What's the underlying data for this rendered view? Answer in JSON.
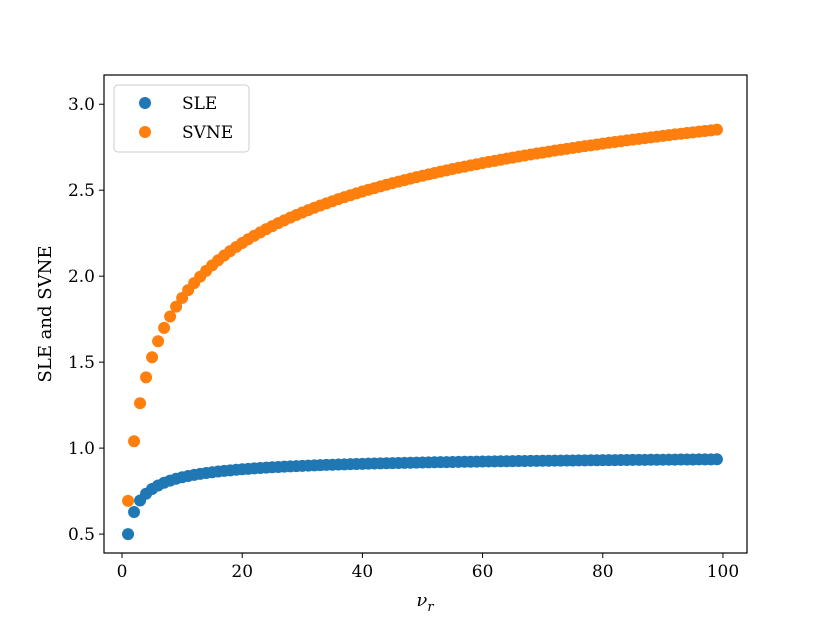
{
  "chart_data": {
    "type": "scatter",
    "title": "",
    "xlabel": "ν_r",
    "xlabel_main": "ν",
    "xlabel_sub": "r",
    "ylabel": "SLE and SVNE",
    "xlim": [
      -3,
      104
    ],
    "ylim": [
      0.39,
      3.17
    ],
    "xticks": [
      0,
      20,
      40,
      60,
      80,
      100
    ],
    "xtick_labels": [
      "0",
      "20",
      "40",
      "60",
      "80",
      "100"
    ],
    "yticks": [
      0.5,
      1.0,
      1.5,
      2.0,
      2.5,
      3.0
    ],
    "ytick_labels": [
      "0.5",
      "1.0",
      "1.5",
      "2.0",
      "2.5",
      "3.0"
    ],
    "grid": false,
    "legend_position": "top-left",
    "x": [
      1,
      2,
      3,
      4,
      5,
      6,
      7,
      8,
      9,
      10,
      11,
      12,
      13,
      14,
      15,
      16,
      17,
      18,
      19,
      20,
      21,
      22,
      23,
      24,
      25,
      26,
      27,
      28,
      29,
      30,
      31,
      32,
      33,
      34,
      35,
      36,
      37,
      38,
      39,
      40,
      41,
      42,
      43,
      44,
      45,
      46,
      47,
      48,
      49,
      50,
      51,
      52,
      53,
      54,
      55,
      56,
      57,
      58,
      59,
      60,
      61,
      62,
      63,
      64,
      65,
      66,
      67,
      68,
      69,
      70,
      71,
      72,
      73,
      74,
      75,
      76,
      77,
      78,
      79,
      80,
      81,
      82,
      83,
      84,
      85,
      86,
      87,
      88,
      89,
      90,
      91,
      92,
      93,
      94,
      95,
      96,
      97,
      98,
      99
    ],
    "series": [
      {
        "name": "SLE",
        "color": "#1f77b4",
        "values": [
          0.5,
          0.6285,
          0.6951,
          0.7344,
          0.7624,
          0.7827,
          0.7985,
          0.8111,
          0.8215,
          0.8303,
          0.8378,
          0.8442,
          0.8499,
          0.855,
          0.8596,
          0.8637,
          0.8674,
          0.8708,
          0.8739,
          0.8768,
          0.8795,
          0.882,
          0.8843,
          0.8864,
          0.8884,
          0.8903,
          0.8921,
          0.8938,
          0.8954,
          0.8969,
          0.8983,
          0.8997,
          0.901,
          0.9022,
          0.9034,
          0.9045,
          0.9056,
          0.9066,
          0.9076,
          0.9086,
          0.9095,
          0.9104,
          0.9112,
          0.912,
          0.9128,
          0.9136,
          0.9143,
          0.915,
          0.9157,
          0.9164,
          0.917,
          0.9176,
          0.9182,
          0.9188,
          0.9194,
          0.9199,
          0.9205,
          0.921,
          0.9215,
          0.922,
          0.9225,
          0.923,
          0.9234,
          0.9239,
          0.9243,
          0.9248,
          0.9252,
          0.9256,
          0.926,
          0.9264,
          0.9268,
          0.9271,
          0.9275,
          0.9279,
          0.9282,
          0.9285,
          0.9289,
          0.9292,
          0.9295,
          0.9299,
          0.9302,
          0.9305,
          0.9308,
          0.9311,
          0.9313,
          0.9316,
          0.9319,
          0.9322,
          0.9324,
          0.9327,
          0.933,
          0.9332,
          0.9335,
          0.9337,
          0.9339,
          0.9342,
          0.9344,
          0.9346,
          0.9349
        ]
      },
      {
        "name": "SVNE",
        "color": "#ff7f0e",
        "values": [
          0.6931,
          1.0397,
          1.2613,
          1.4111,
          1.5284,
          1.6217,
          1.6992,
          1.7652,
          1.8227,
          1.8734,
          1.9187,
          1.9597,
          1.997,
          2.0313,
          2.063,
          2.0925,
          2.12,
          2.1458,
          2.17,
          2.1929,
          2.2146,
          2.2352,
          2.2548,
          2.2735,
          2.2913,
          2.3084,
          2.3248,
          2.3405,
          2.3556,
          2.3702,
          2.3842,
          2.3978,
          2.4109,
          2.4236,
          2.4359,
          2.4478,
          2.4594,
          2.4706,
          2.4815,
          2.4921,
          2.5024,
          2.5124,
          2.5222,
          2.5317,
          2.541,
          2.5501,
          2.5589,
          2.5676,
          2.576,
          2.5843,
          2.5923,
          2.6002,
          2.608,
          2.6155,
          2.623,
          2.6302,
          2.6373,
          2.6443,
          2.6512,
          2.6579,
          2.6645,
          2.6709,
          2.6773,
          2.6835,
          2.6897,
          2.6957,
          2.7016,
          2.7075,
          2.7132,
          2.7188,
          2.7244,
          2.7299,
          2.7353,
          2.7406,
          2.7458,
          2.7509,
          2.756,
          2.761,
          2.766,
          2.7708,
          2.7756,
          2.7804,
          2.785,
          2.7896,
          2.7942,
          2.7987,
          2.8031,
          2.8075,
          2.8118,
          2.816,
          2.8202,
          2.8244,
          2.8285,
          2.8325,
          2.8365,
          2.8404,
          2.8443,
          2.8482,
          2.852
        ]
      }
    ]
  }
}
